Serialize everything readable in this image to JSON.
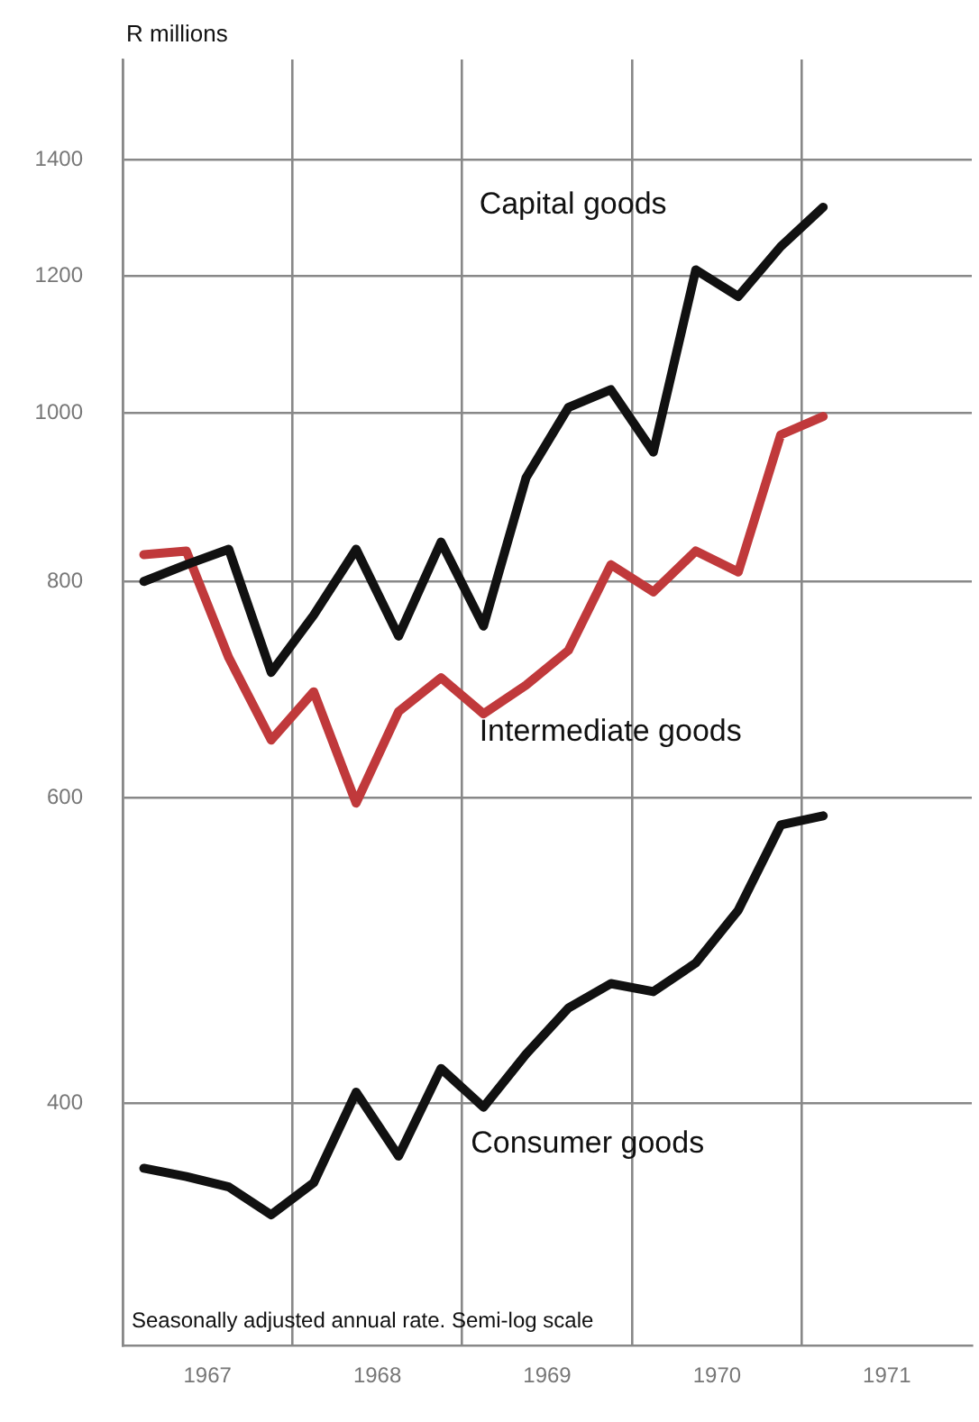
{
  "chart_data": {
    "type": "line",
    "ylabel": "R millions",
    "log": true,
    "grid": true,
    "legend": false,
    "marker": "none",
    "line_style": "solid",
    "annotations": [
      "Seasonally adjusted annual rate. Semi-log scale"
    ],
    "x": [
      1967.125,
      1967.375,
      1967.625,
      1967.875,
      1968.125,
      1968.375,
      1968.625,
      1968.875,
      1969.125,
      1969.375,
      1969.625,
      1969.875,
      1970.125,
      1970.375,
      1970.625,
      1970.875,
      1971.125
    ],
    "xlim": [
      1967,
      1972
    ],
    "xticks": [
      {
        "value": 1967,
        "label": null
      },
      {
        "value": 1967.5,
        "label": "1967"
      },
      {
        "value": 1968,
        "label": null
      },
      {
        "value": 1968.5,
        "label": "1968"
      },
      {
        "value": 1969,
        "label": null
      },
      {
        "value": 1969.5,
        "label": "1969"
      },
      {
        "value": 1970,
        "label": null
      },
      {
        "value": 1970.5,
        "label": "1970"
      },
      {
        "value": 1971,
        "label": null
      },
      {
        "value": 1971.5,
        "label": "1971"
      }
    ],
    "ylim": [
      290,
      1600
    ],
    "yticks": [
      400,
      600,
      800,
      1000,
      1200,
      1400
    ],
    "series": [
      {
        "name": "Capital goods",
        "color": "#111111",
        "values": [
          800,
          818,
          835,
          709,
          765,
          835,
          744,
          843,
          754,
          918,
          1008,
          1032,
          950,
          1210,
          1168,
          1248,
          1315
        ]
      },
      {
        "name": "Intermediate goods",
        "color": "#c0393b",
        "values": [
          829,
          833,
          723,
          648,
          691,
          596,
          673,
          704,
          671,
          697,
          730,
          818,
          789,
          833,
          810,
          972,
          996
        ]
      },
      {
        "name": "Consumer goods",
        "color": "#111111",
        "values": [
          367,
          363,
          358,
          345,
          360,
          406,
          373,
          419,
          398,
          427,
          454,
          469,
          464,
          482,
          517,
          579,
          586
        ]
      }
    ]
  }
}
